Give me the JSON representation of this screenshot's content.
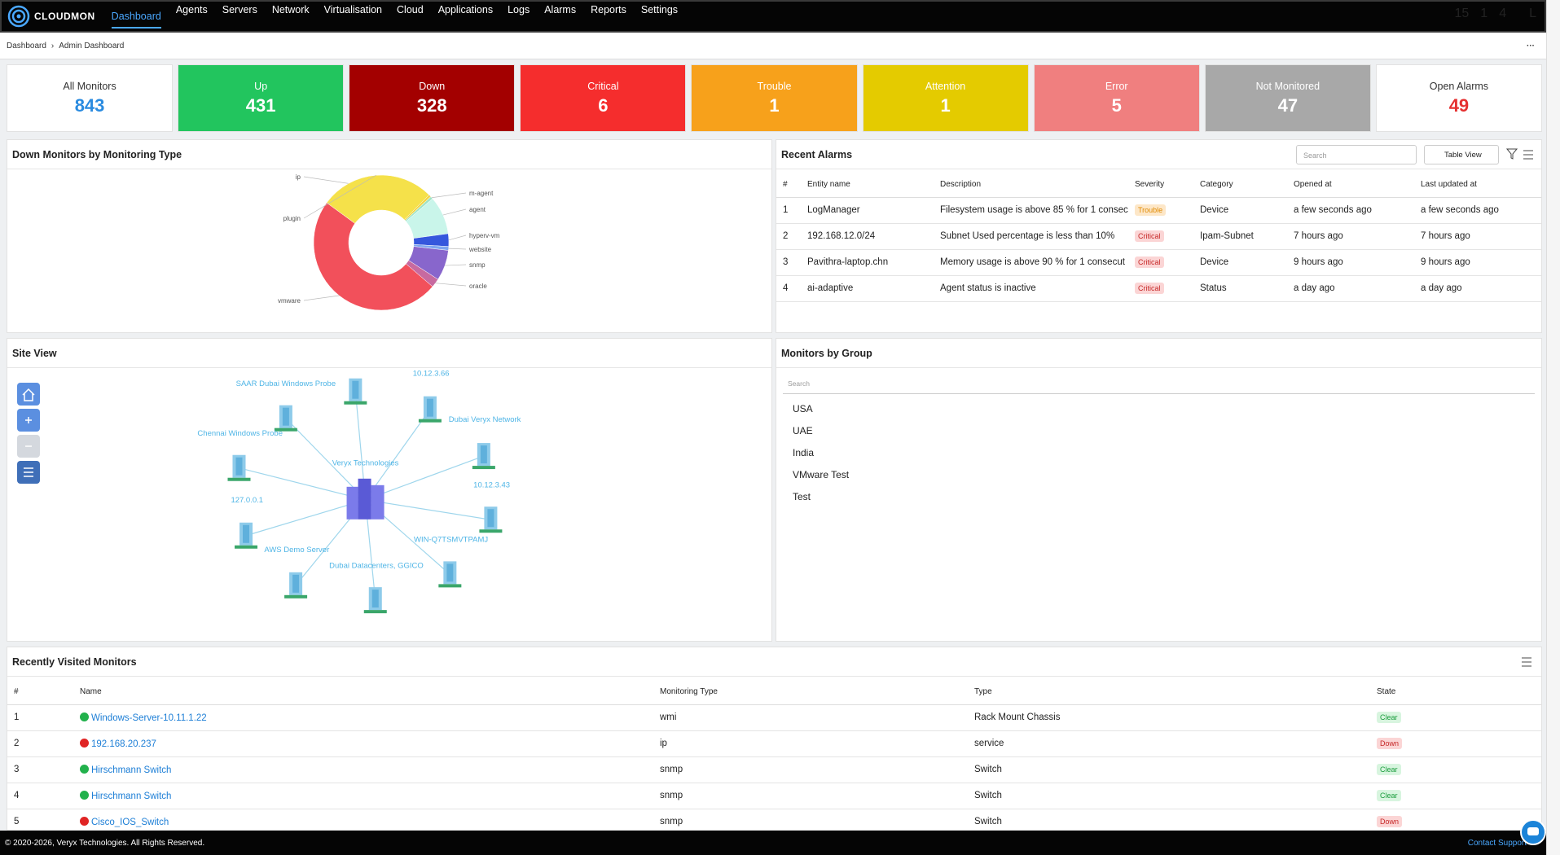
{
  "nav": {
    "brand": "CLOUDMON",
    "items": [
      "Dashboard",
      "Agents",
      "Servers",
      "Network",
      "Virtualisation",
      "Cloud",
      "Applications",
      "Logs",
      "Alarms",
      "Reports",
      "Settings"
    ],
    "badges": [
      15,
      1,
      4
    ],
    "avatar": "L"
  },
  "breadcrumb": [
    "Dashboard",
    "Admin Dashboard"
  ],
  "cards": [
    {
      "label": "All Monitors",
      "value": 843,
      "color": "#ffffff",
      "text_color": "#2a8be0"
    },
    {
      "label": "Up",
      "value": 431,
      "color": "#22c55e",
      "text_color": "#ffffff"
    },
    {
      "label": "Down",
      "value": 328,
      "color": "#a30000",
      "text_color": "#ffffff"
    },
    {
      "label": "Critical",
      "value": 6,
      "color": "#f52d2d",
      "text_color": "#ffffff"
    },
    {
      "label": "Trouble",
      "value": 1,
      "color": "#f7a11b",
      "text_color": "#ffffff"
    },
    {
      "label": "Attention",
      "value": 1,
      "color": "#e4cb00",
      "text_color": "#ffffff"
    },
    {
      "label": "Error",
      "value": 5,
      "color": "#f07f7f",
      "text_color": "#ffffff"
    },
    {
      "label": "Not Monitored",
      "value": 47,
      "color": "#a8a8a8",
      "text_color": "#ffffff"
    },
    {
      "label": "Open Alarms",
      "value": 49,
      "color": "#ffffff",
      "text_color": "#e53030"
    }
  ],
  "chart_data": {
    "type": "pie",
    "title": "Down Monitors by Monitoring Type",
    "categories": [
      "ip",
      "m-agent",
      "agent",
      "hyperv-vm",
      "website",
      "snmp",
      "oracle",
      "vmware",
      "plugin"
    ],
    "values": [
      2,
      2,
      30,
      10,
      3,
      24,
      7,
      160,
      90
    ],
    "colors": [
      "#f3d64a",
      "#9fe3c6",
      "#c9f5ea",
      "#3557dd",
      "#7fa6f0",
      "#8866cc",
      "#c76aa0",
      "#f2505b",
      "#f5e14a"
    ]
  },
  "alarms": {
    "title": "Recent Alarms",
    "search": "Search",
    "view": "Table View",
    "columns": [
      "#",
      "Entity name",
      "Description",
      "Severity",
      "Category",
      "Opened at",
      "Last updated at"
    ],
    "rows": [
      [
        1,
        "LogManager",
        "Filesystem usage is above 85 % for 1 consec",
        "Trouble",
        "Device",
        "a few seconds ago",
        "a few seconds ago"
      ],
      [
        2,
        "192.168.12.0/24",
        "Subnet Used percentage is less than 10%",
        "Critical",
        "Ipam-Subnet",
        "7 hours ago",
        "7 hours ago"
      ],
      [
        3,
        "Pavithra-laptop.chn",
        "Memory usage is above 90 % for 1 consecut",
        "Critical",
        "Device",
        "9 hours ago",
        "9 hours ago"
      ],
      [
        4,
        "ai-adaptive",
        "Agent status is inactive",
        "Critical",
        "Status",
        "a day ago",
        "a day ago"
      ]
    ]
  },
  "site": {
    "title": "Site View",
    "labels": [
      "SAAR Dubai Windows Probe",
      "10.12.3.66",
      "Dubai Veryx Network",
      "Chennai Windows Probe",
      "Veryx Technologies",
      "10.12.3.43",
      "127.0.0.1",
      "WIN-Q7TSMVTPAMJ",
      "AWS Demo Server",
      "Dubai Datacenters, GGICO"
    ]
  },
  "groups": {
    "title": "Monitors by Group",
    "search": "Search",
    "items": [
      "USA",
      "UAE",
      "India",
      "VMware Test",
      "Test"
    ]
  },
  "recent": {
    "title": "Recently Visited Monitors",
    "columns": [
      "#",
      "Name",
      "Monitoring Type",
      "Type",
      "State"
    ],
    "rows": [
      [
        1,
        "Windows-Server-10.11.1.22",
        "wmi",
        "Rack Mount Chassis",
        "Clear"
      ],
      [
        2,
        "192.168.20.237",
        "ip",
        "service",
        "Down"
      ],
      [
        3,
        "Hirschmann Switch",
        "snmp",
        "Switch",
        "Clear"
      ],
      [
        4,
        "Hirschmann Switch",
        "snmp",
        "Switch",
        "Clear"
      ],
      [
        5,
        "Cisco_IOS_Switch",
        "snmp",
        "Switch",
        "Down"
      ]
    ]
  },
  "footer": {
    "copyright": "© 2020-2026, Veryx Technologies. All Rights Reserved.",
    "contact": "Contact Support"
  }
}
